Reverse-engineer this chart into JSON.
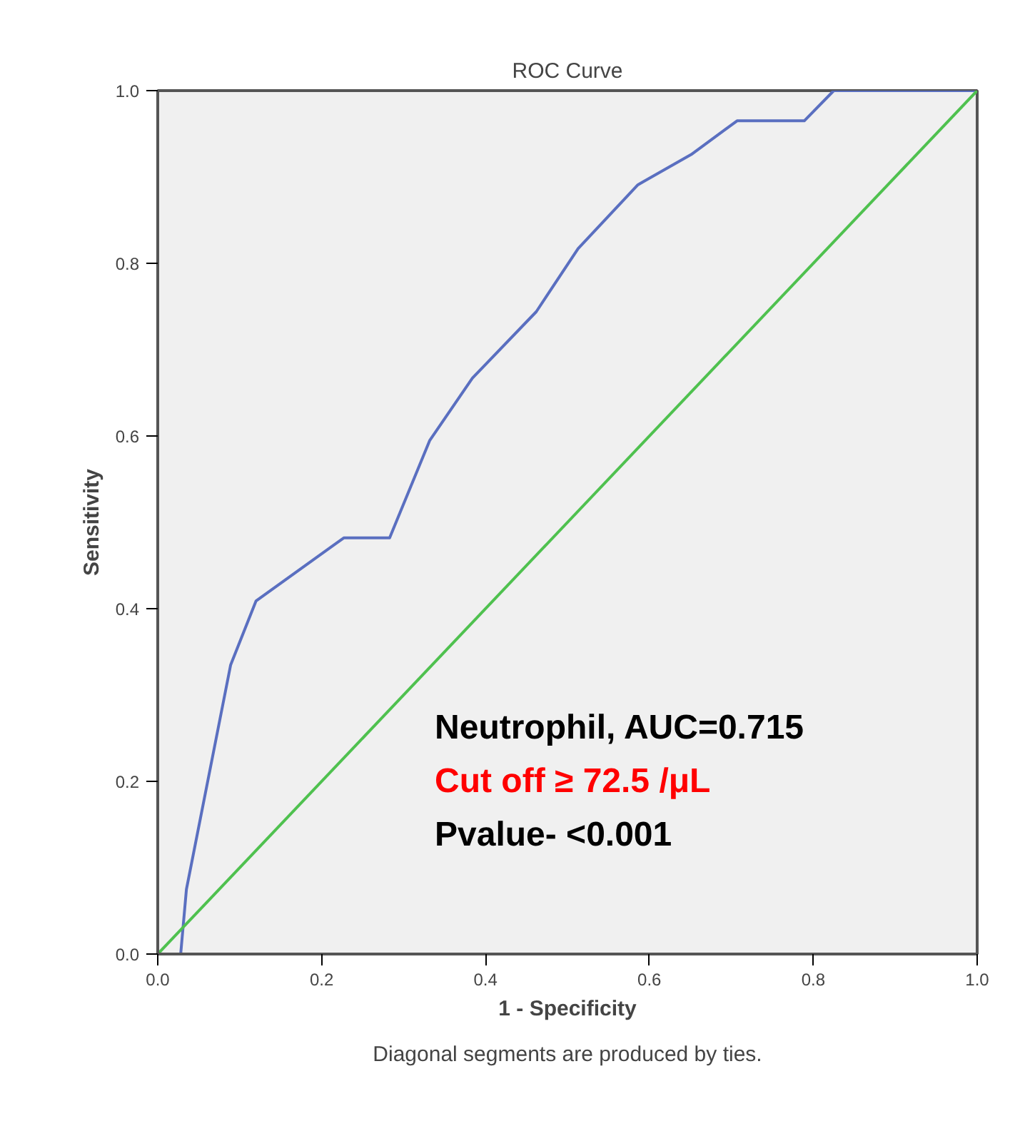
{
  "chart_data": {
    "type": "line",
    "title": "ROC Curve",
    "xlabel": "1 - Specificity",
    "ylabel": "Sensitivity",
    "xlim": [
      0,
      1
    ],
    "ylim": [
      0,
      1
    ],
    "xticks": [
      {
        "value": 0,
        "label": "0.0"
      },
      0.2,
      0.4,
      0.6,
      0.8,
      {
        "value": 1,
        "label": "1.0"
      }
    ],
    "yticks": [
      {
        "value": 0,
        "label": "0.0"
      },
      0.2,
      0.4,
      0.6,
      0.8,
      {
        "value": 1,
        "label": "1.0"
      }
    ],
    "grid": false,
    "marker": "none",
    "line_style": "solid",
    "series": [
      {
        "color": "#5a6fc0",
        "x": [
          0,
          0.028,
          0.035,
          0.089,
          0.12,
          0.227,
          0.283,
          0.332,
          0.384,
          0.462,
          0.513,
          0.586,
          0.651,
          0.707,
          0.789,
          0.825,
          1
        ],
        "values": [
          0,
          0,
          0.075,
          0.335,
          0.409,
          0.482,
          0.482,
          0.595,
          0.667,
          0.744,
          0.817,
          0.891,
          0.926,
          0.965,
          0.965,
          1,
          1
        ]
      },
      {
        "color": "#4fc14f",
        "x": [
          0,
          1
        ],
        "values": [
          0,
          1
        ]
      }
    ],
    "annotations": [
      "Neutrophil, AUC=0.715",
      "Cut off ≥ 72.5 /μL",
      "Pvalue- <0.001",
      "Diagonal segments are produced by ties."
    ]
  }
}
